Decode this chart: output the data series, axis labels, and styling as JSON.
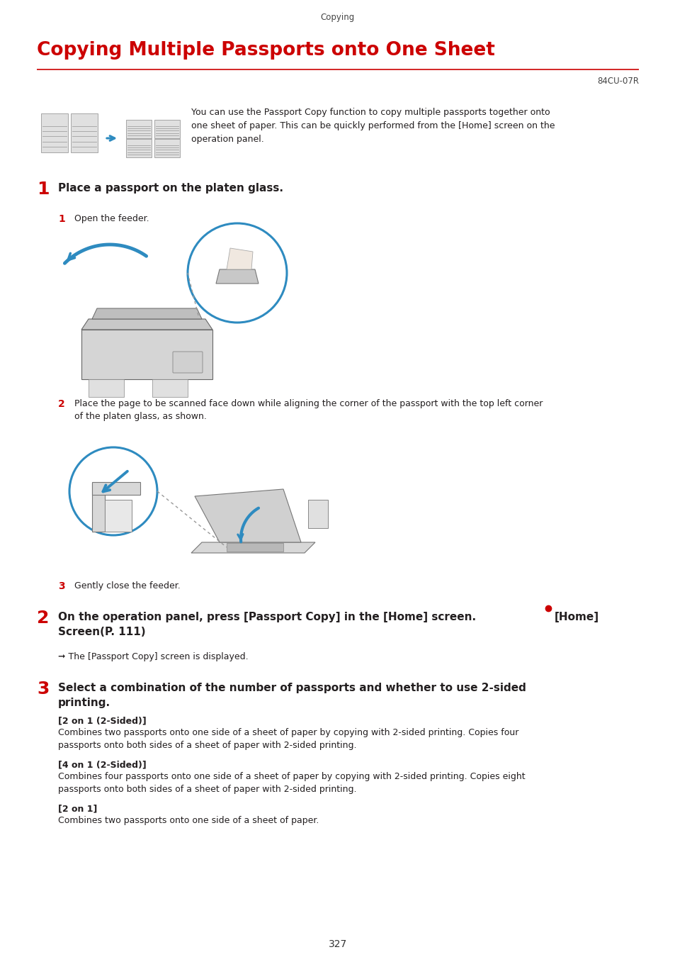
{
  "page_header": "Copying",
  "title": "Copying Multiple Passports onto One Sheet",
  "title_color": "#cc0000",
  "code": "84CU-07R",
  "intro_text": "You can use the Passport Copy function to copy multiple passports together onto\none sheet of paper. This can be quickly performed from the [Home] screen on the\noperation panel.",
  "step1_num": "1",
  "step1_text": "Place a passport on the platen glass.",
  "sub1_num": "1",
  "sub1_text": "Open the feeder.",
  "sub2_num": "2",
  "sub2_text": "Place the page to be scanned face down while aligning the corner of the passport with the top left corner\nof the platen glass, as shown.",
  "sub3_num": "3",
  "sub3_text": "Gently close the feeder.",
  "step2_num": "2",
  "step2_text": "On the operation panel, press [Passport Copy] in the [Home] screen. ●[Home]\nScreen(P. 111)",
  "step2_result": "➞ The [Passport Copy] screen is displayed.",
  "step3_num": "3",
  "step3_text": "Select a combination of the number of passports and whether to use 2-sided\nprinting.",
  "option1_label": "[2 on 1 (2-Sided)]",
  "option1_text": "Combines two passports onto one side of a sheet of paper by copying with 2-sided printing. Copies four\npassports onto both sides of a sheet of paper with 2-sided printing.",
  "option2_label": "[4 on 1 (2-Sided)]",
  "option2_text": "Combines four passports onto one side of a sheet of paper by copying with 2-sided printing. Copies eight\npassports onto both sides of a sheet of paper with 2-sided printing.",
  "option3_label": "[2 on 1]",
  "option3_text": "Combines two passports onto one side of a sheet of paper.",
  "page_number": "327",
  "bg_color": "#ffffff",
  "text_color": "#231f20",
  "red_color": "#cc0000",
  "line_color": "#cc0000",
  "blue_color": "#2e8bc0",
  "gray_color": "#c8c8c8",
  "dark_gray": "#888888"
}
